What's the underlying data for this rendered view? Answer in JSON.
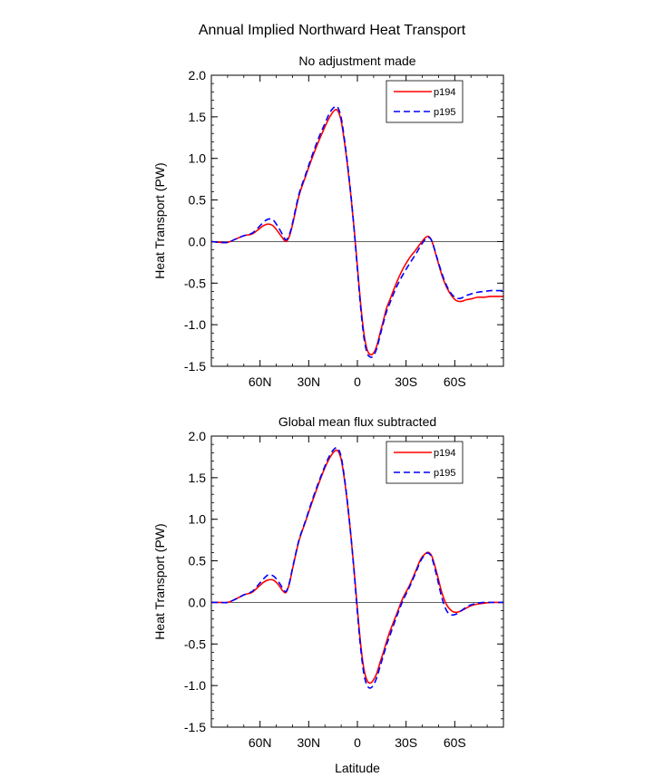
{
  "figure": {
    "title": "Annual Implied Northward Heat Transport"
  },
  "chart_data": [
    {
      "type": "line",
      "title": "No adjustment made",
      "xlabel": "",
      "ylabel": "Heat Transport (PW)",
      "xlim": [
        90,
        -90
      ],
      "ylim": [
        -1.5,
        2.0
      ],
      "x_ticks": [
        60,
        30,
        0,
        -30,
        -60
      ],
      "x_tick_labels": [
        "60N",
        "30N",
        "0",
        "30S",
        "60S"
      ],
      "y_ticks": [
        -1.5,
        -1.0,
        -0.5,
        0.0,
        0.5,
        1.0,
        1.5,
        2.0
      ],
      "y_tick_labels": [
        "-1.5",
        "-1.0",
        "-0.5",
        "0.0",
        "0.5",
        "1.0",
        "1.5",
        "2.0"
      ],
      "zero_line": true,
      "legend": {
        "position": "top-right"
      },
      "series": [
        {
          "name": "p194",
          "color": "#ff0000",
          "dash": "solid",
          "x": [
            90,
            85,
            80,
            75,
            70,
            65,
            62,
            58,
            55,
            52,
            49,
            46,
            44,
            42,
            40,
            36,
            32,
            28,
            24,
            20,
            17,
            14,
            12,
            10,
            8,
            6,
            4,
            2,
            0,
            -2,
            -4,
            -6,
            -8,
            -10,
            -12,
            -14,
            -16,
            -18,
            -20,
            -24,
            -28,
            -32,
            -36,
            -39,
            -42,
            -44,
            -46,
            -49,
            -52,
            -55,
            -58,
            -61,
            -64,
            -67,
            -70,
            -74,
            -78,
            -82,
            -86,
            -90
          ],
          "y": [
            0.0,
            -0.01,
            -0.01,
            0.03,
            0.07,
            0.09,
            0.13,
            0.19,
            0.21,
            0.19,
            0.12,
            0.04,
            0.0,
            0.06,
            0.2,
            0.55,
            0.78,
            1.0,
            1.2,
            1.38,
            1.5,
            1.58,
            1.57,
            1.45,
            1.2,
            0.9,
            0.55,
            0.15,
            -0.3,
            -0.75,
            -1.1,
            -1.3,
            -1.36,
            -1.34,
            -1.25,
            -1.1,
            -0.95,
            -0.8,
            -0.7,
            -0.5,
            -0.33,
            -0.2,
            -0.1,
            -0.02,
            0.05,
            0.06,
            0.0,
            -0.2,
            -0.4,
            -0.55,
            -0.65,
            -0.71,
            -0.72,
            -0.7,
            -0.69,
            -0.67,
            -0.67,
            -0.66,
            -0.66,
            -0.66
          ]
        },
        {
          "name": "p195",
          "color": "#0000ff",
          "dash": "dashed",
          "x": [
            90,
            85,
            80,
            75,
            70,
            65,
            62,
            58,
            55,
            52,
            49,
            46,
            44,
            42,
            40,
            36,
            32,
            28,
            24,
            20,
            17,
            14,
            12,
            10,
            8,
            6,
            4,
            2,
            0,
            -2,
            -4,
            -6,
            -8,
            -10,
            -12,
            -14,
            -16,
            -18,
            -20,
            -24,
            -28,
            -32,
            -36,
            -39,
            -42,
            -44,
            -46,
            -49,
            -52,
            -55,
            -58,
            -61,
            -64,
            -67,
            -70,
            -74,
            -78,
            -82,
            -86,
            -90
          ],
          "y": [
            0.0,
            -0.01,
            -0.01,
            0.03,
            0.07,
            0.1,
            0.15,
            0.23,
            0.27,
            0.26,
            0.18,
            0.08,
            0.02,
            0.08,
            0.22,
            0.57,
            0.8,
            1.03,
            1.24,
            1.42,
            1.55,
            1.62,
            1.61,
            1.49,
            1.23,
            0.92,
            0.56,
            0.14,
            -0.33,
            -0.79,
            -1.15,
            -1.34,
            -1.39,
            -1.37,
            -1.28,
            -1.13,
            -0.98,
            -0.84,
            -0.74,
            -0.55,
            -0.4,
            -0.27,
            -0.15,
            -0.05,
            0.03,
            0.05,
            0.0,
            -0.19,
            -0.38,
            -0.53,
            -0.63,
            -0.68,
            -0.68,
            -0.65,
            -0.63,
            -0.61,
            -0.6,
            -0.59,
            -0.59,
            -0.59
          ]
        }
      ]
    },
    {
      "type": "line",
      "title": "Global mean flux subtracted",
      "xlabel": "Latitude",
      "ylabel": "Heat Transport (PW)",
      "xlim": [
        90,
        -90
      ],
      "ylim": [
        -1.5,
        2.0
      ],
      "x_ticks": [
        60,
        30,
        0,
        -30,
        -60
      ],
      "x_tick_labels": [
        "60N",
        "30N",
        "0",
        "30S",
        "60S"
      ],
      "y_ticks": [
        -1.5,
        -1.0,
        -0.5,
        0.0,
        0.5,
        1.0,
        1.5,
        2.0
      ],
      "y_tick_labels": [
        "-1.5",
        "-1.0",
        "-0.5",
        "0.0",
        "0.5",
        "1.0",
        "1.5",
        "2.0"
      ],
      "zero_line": true,
      "legend": {
        "position": "top-right"
      },
      "series": [
        {
          "name": "p194",
          "color": "#ff0000",
          "dash": "solid",
          "x": [
            90,
            85,
            80,
            75,
            70,
            65,
            62,
            58,
            55,
            52,
            49,
            46,
            44,
            42,
            40,
            36,
            32,
            28,
            24,
            20,
            17,
            14,
            12,
            10,
            8,
            6,
            4,
            2,
            0,
            -2,
            -4,
            -6,
            -8,
            -10,
            -12,
            -14,
            -16,
            -18,
            -20,
            -24,
            -28,
            -32,
            -36,
            -39,
            -42,
            -44,
            -46,
            -49,
            -52,
            -55,
            -58,
            -61,
            -64,
            -67,
            -70,
            -74,
            -78,
            -82,
            -86,
            -90
          ],
          "y": [
            0.0,
            0.0,
            0.0,
            0.04,
            0.09,
            0.12,
            0.17,
            0.24,
            0.27,
            0.27,
            0.22,
            0.14,
            0.12,
            0.22,
            0.4,
            0.74,
            0.97,
            1.2,
            1.42,
            1.62,
            1.74,
            1.82,
            1.82,
            1.72,
            1.48,
            1.17,
            0.8,
            0.38,
            -0.08,
            -0.5,
            -0.8,
            -0.94,
            -0.97,
            -0.93,
            -0.85,
            -0.72,
            -0.6,
            -0.47,
            -0.35,
            -0.15,
            0.05,
            0.2,
            0.38,
            0.52,
            0.59,
            0.6,
            0.55,
            0.35,
            0.12,
            -0.03,
            -0.1,
            -0.12,
            -0.1,
            -0.07,
            -0.04,
            -0.02,
            -0.01,
            0.0,
            0.0,
            0.0
          ]
        },
        {
          "name": "p195",
          "color": "#0000ff",
          "dash": "dashed",
          "x": [
            90,
            85,
            80,
            75,
            70,
            65,
            62,
            58,
            55,
            52,
            49,
            46,
            44,
            42,
            40,
            36,
            32,
            28,
            24,
            20,
            17,
            14,
            12,
            10,
            8,
            6,
            4,
            2,
            0,
            -2,
            -4,
            -6,
            -8,
            -10,
            -12,
            -14,
            -16,
            -18,
            -20,
            -24,
            -28,
            -32,
            -36,
            -39,
            -42,
            -44,
            -46,
            -49,
            -52,
            -55,
            -58,
            -61,
            -64,
            -67,
            -70,
            -74,
            -78,
            -82,
            -86,
            -90
          ],
          "y": [
            0.0,
            0.0,
            0.0,
            0.04,
            0.09,
            0.13,
            0.19,
            0.28,
            0.33,
            0.32,
            0.26,
            0.17,
            0.13,
            0.23,
            0.41,
            0.75,
            0.98,
            1.22,
            1.44,
            1.64,
            1.77,
            1.85,
            1.85,
            1.75,
            1.5,
            1.18,
            0.8,
            0.36,
            -0.12,
            -0.55,
            -0.86,
            -1.0,
            -1.03,
            -0.99,
            -0.9,
            -0.77,
            -0.64,
            -0.51,
            -0.4,
            -0.18,
            0.02,
            0.18,
            0.36,
            0.5,
            0.58,
            0.59,
            0.53,
            0.31,
            0.06,
            -0.1,
            -0.15,
            -0.14,
            -0.1,
            -0.06,
            -0.03,
            -0.01,
            0.0,
            0.0,
            0.0,
            0.0
          ]
        }
      ]
    }
  ]
}
